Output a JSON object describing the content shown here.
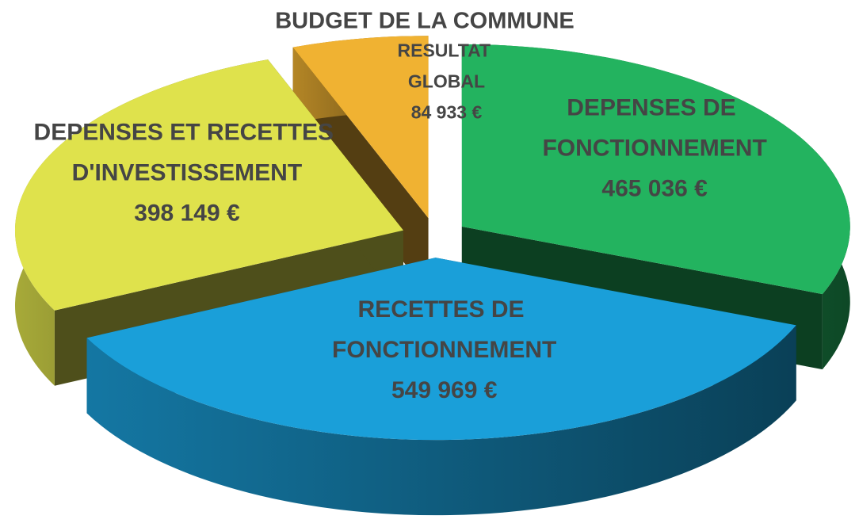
{
  "chart_data": {
    "type": "pie3d",
    "title": "BUDGET DE LA COMMUNE",
    "categories": [
      "DEPENSES DE FONCTIONNEMENT",
      "RECETTES DE FONCTIONNEMENT",
      "DEPENSES ET RECETTES D'INVESTISSEMENT",
      "RESULTAT GLOBAL"
    ],
    "values": [
      465036,
      549969,
      398149,
      84933
    ],
    "value_labels": [
      "465 036 €",
      "549 969 €",
      "398 149 €",
      "84 933 €"
    ],
    "colors": [
      "#23b35f",
      "#1a9fd9",
      "#dfe24c",
      "#f0b232"
    ]
  }
}
